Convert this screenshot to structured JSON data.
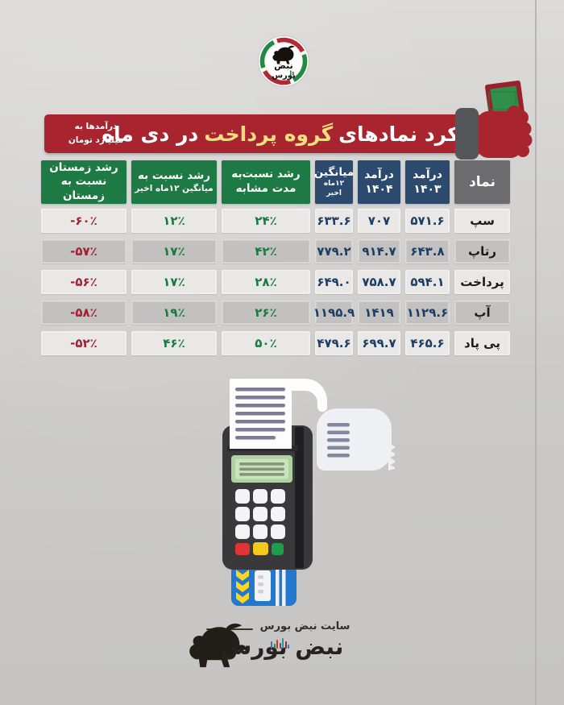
{
  "colors": {
    "background": "#d2d1cf",
    "banner_red": "#a8252f",
    "title_highlight_yellow": "#f2dd82",
    "header_gray": "#6c6c6e",
    "header_blue": "#2c4a6d",
    "header_green": "#1e7a44",
    "row_light": "#e9e8e6",
    "row_dark": "#c2c1bf",
    "value_blue": "#1d3d63",
    "value_green": "#187a3d",
    "value_red": "#9f2230",
    "money_green": "#2f8f4b",
    "card_blue": "#2277cf"
  },
  "logo_top": {
    "brand_line1": "نبض",
    "brand_line2": "بورس"
  },
  "banner": {
    "title_pre": "عملکرد نمادهای",
    "title_highlight": "گروه پرداخت",
    "title_post": "در دی ماه",
    "unit_line1": "درآمدها به",
    "unit_line2": "میلیارد تومان"
  },
  "table": {
    "header": {
      "symbol": "نماد",
      "rev1403_l1": "درآمد",
      "rev1403_l2": "۱۴۰۳",
      "rev1404_l1": "درآمد",
      "rev1404_l2": "۱۴۰۴",
      "avg_l1": "میانگین",
      "avg_l2": "۱۲ماه اخیر",
      "growth_similar_l1": "رشد نسبت‌به",
      "growth_similar_l2": "مدت مشابه",
      "growth_avg_l1": "رشد نسبت به",
      "growth_avg_l2": "میانگین ۱۲ماه اخیر",
      "growth_winter_l1": "رشد زمستان",
      "growth_winter_l2": "نسبت به زمستان"
    },
    "rows": [
      {
        "symbol": "سپ",
        "rev1403": "۵۷۱.۶",
        "rev1404": "۷۰۷",
        "avg12": "۶۳۳.۶",
        "growth_similar": "۲۴٪",
        "growth_avg": "۱۲٪",
        "growth_winter": "-۶۰٪"
      },
      {
        "symbol": "رتاپ",
        "rev1403": "۶۴۳.۸",
        "rev1404": "۹۱۴.۷",
        "avg12": "۷۷۹.۲",
        "growth_similar": "۴۲٪",
        "growth_avg": "۱۷٪",
        "growth_winter": "-۵۷٪"
      },
      {
        "symbol": "پرداخت",
        "rev1403": "۵۹۴.۱",
        "rev1404": "۷۵۸.۷",
        "avg12": "۶۴۹.۰",
        "growth_similar": "۲۸٪",
        "growth_avg": "۱۷٪",
        "growth_winter": "-۵۶٪"
      },
      {
        "symbol": "آپ",
        "rev1403": "۱۱۲۹.۶",
        "rev1404": "۱۴۱۹",
        "avg12": "۱۱۹۵.۹",
        "growth_similar": "۲۶٪",
        "growth_avg": "۱۹٪",
        "growth_winter": "-۵۸٪"
      },
      {
        "symbol": "پی پاد",
        "rev1403": "۴۶۵.۶",
        "rev1404": "۶۹۹.۷",
        "avg12": "۴۷۹.۶",
        "growth_similar": "۵۰٪",
        "growth_avg": "۴۶٪",
        "growth_winter": "-۵۲٪"
      }
    ]
  },
  "footer": {
    "site_label": "سایت نبض بورس",
    "brand": "نبض بورس"
  },
  "chart_data": {
    "type": "table",
    "title": "عملکرد نمادهای گروه پرداخت در دی ماه",
    "unit": "درآمدها به میلیارد تومان",
    "columns": [
      "نماد",
      "درآمد ۱۴۰۳",
      "درآمد ۱۴۰۴",
      "میانگین ۱۲ماه اخیر",
      "رشد نسبت‌به مدت مشابه",
      "رشد نسبت به میانگین ۱۲ماه اخیر",
      "رشد زمستان نسبت به زمستان"
    ],
    "rows": [
      [
        "سپ",
        571.6,
        707,
        633.6,
        "24%",
        "12%",
        "-60%"
      ],
      [
        "رتاپ",
        643.8,
        914.7,
        779.2,
        "42%",
        "17%",
        "-57%"
      ],
      [
        "پرداخت",
        594.1,
        758.7,
        649.0,
        "28%",
        "17%",
        "-56%"
      ],
      [
        "آپ",
        1129.6,
        1419,
        1195.9,
        "26%",
        "19%",
        "-58%"
      ],
      [
        "پی پاد",
        465.6,
        699.7,
        479.6,
        "50%",
        "46%",
        "-52%"
      ]
    ]
  }
}
